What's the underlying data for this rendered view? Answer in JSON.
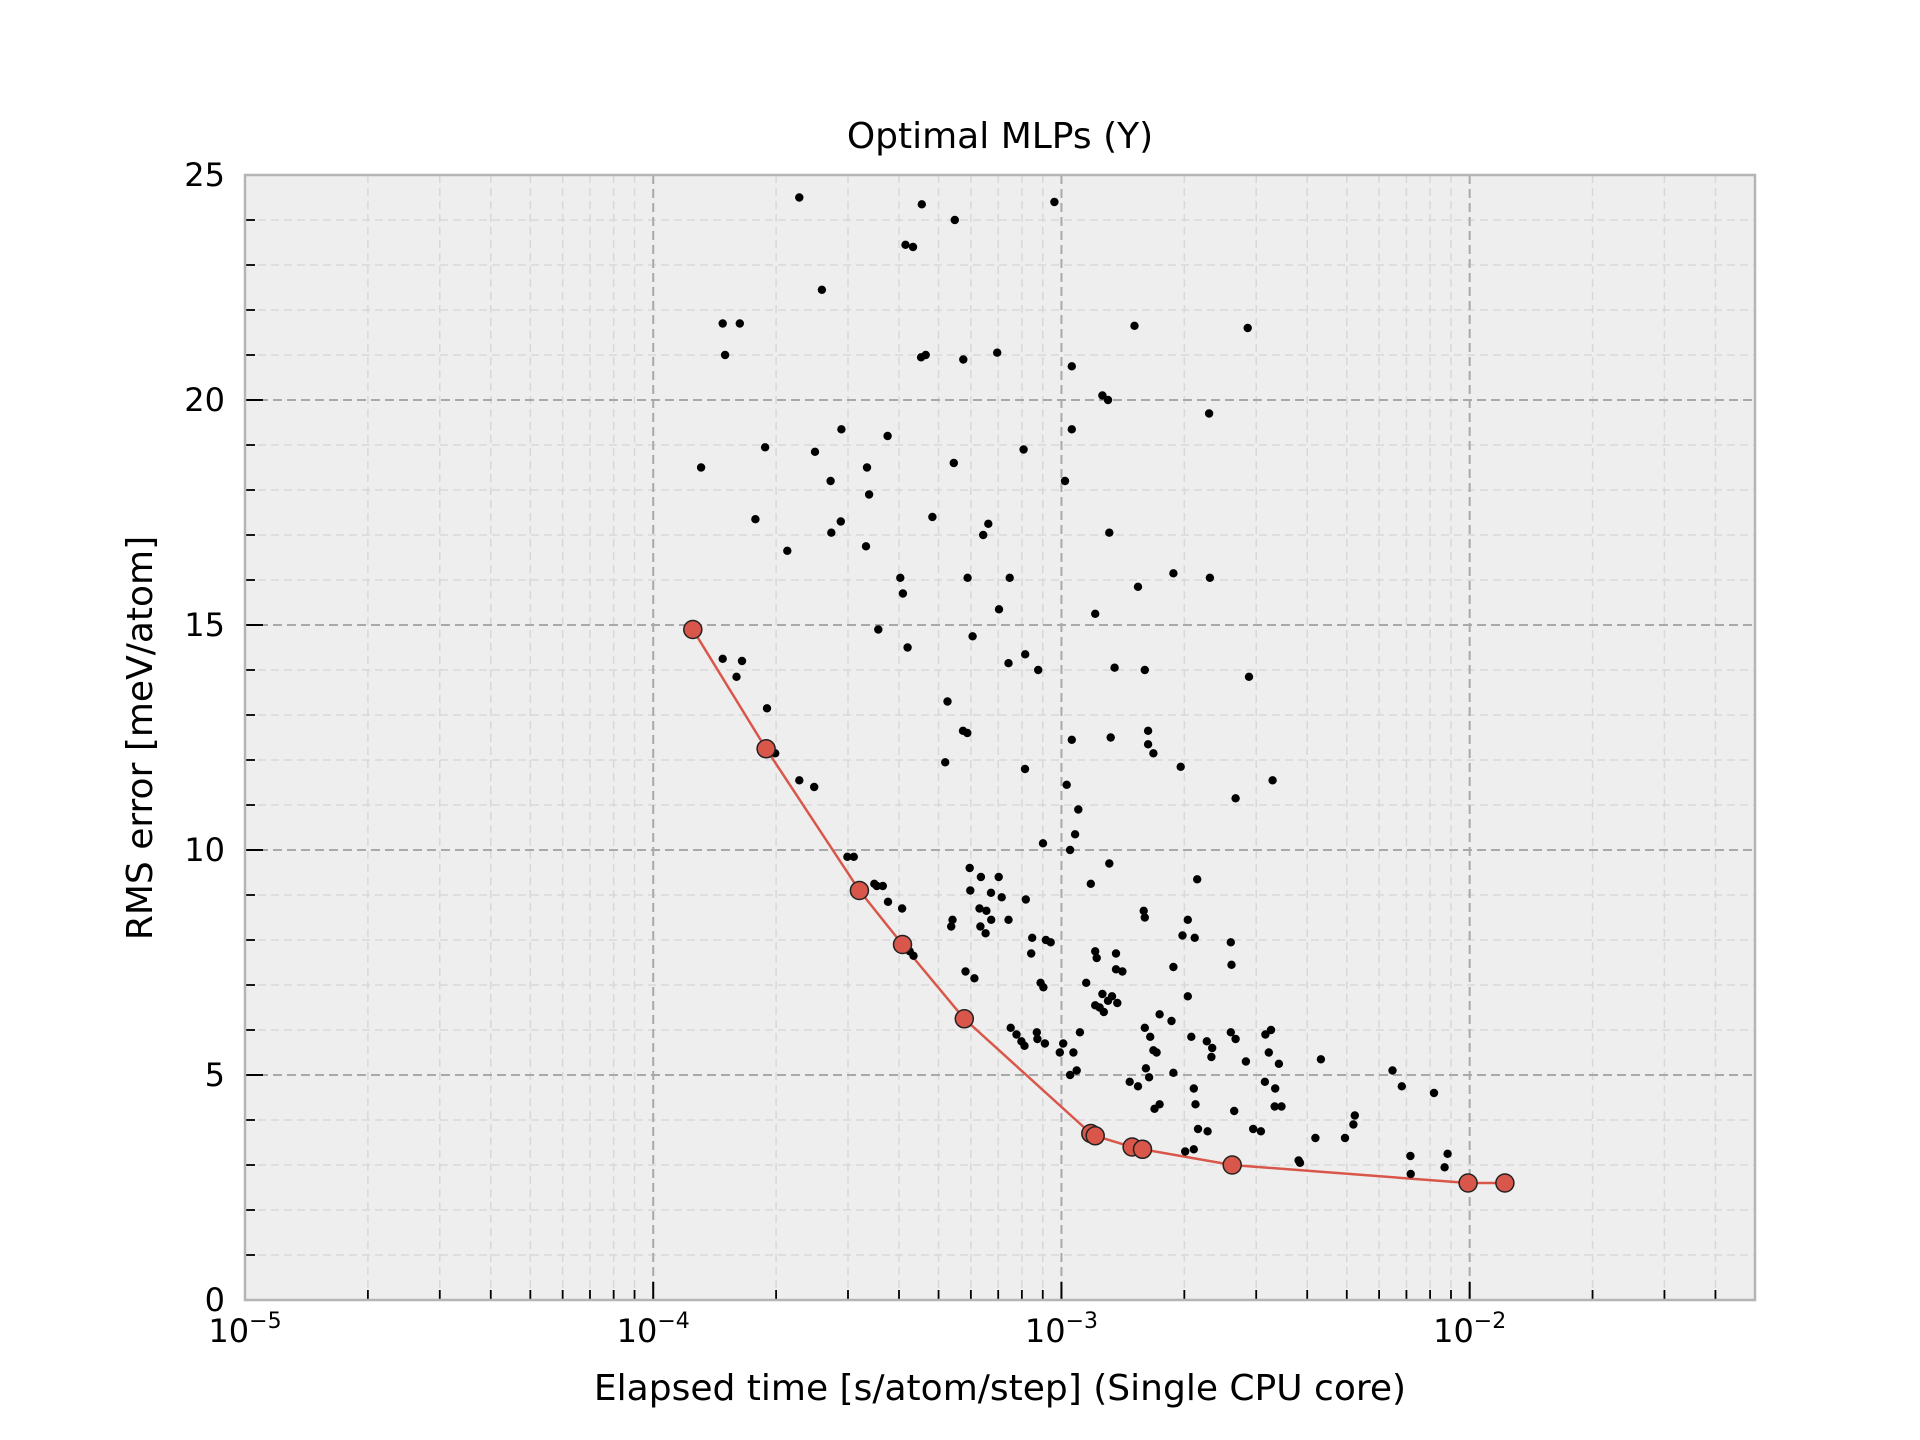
{
  "chart_data": {
    "type": "scatter",
    "title": "Optimal MLPs (Y)",
    "xlabel": "Elapsed time [s/atom/step] (Single CPU core)",
    "ylabel": "RMS error [meV/atom]",
    "xscale": "log",
    "xlim": [
      1e-05,
      0.05
    ],
    "ylim": [
      0,
      25
    ],
    "grid": true,
    "x_ticks": [
      {
        "base": "10",
        "exp": "−5",
        "value": 1e-05
      },
      {
        "base": "10",
        "exp": "−4",
        "value": 0.0001
      },
      {
        "base": "10",
        "exp": "−3",
        "value": 0.001
      },
      {
        "base": "10",
        "exp": "−2",
        "value": 0.01
      }
    ],
    "y_ticks": [
      "0",
      "5",
      "10",
      "15",
      "20",
      "25"
    ],
    "colors": {
      "pareto": "#d9574a",
      "points": "#000000",
      "plot_bg": "#eeeeee",
      "grid": "#a9a9a9"
    },
    "series": [
      {
        "kind": "points",
        "points": [
          [
            0.000228,
            24.5
          ],
          [
            0.000455,
            24.35
          ],
          [
            0.000961,
            24.4
          ],
          [
            0.000548,
            24.0
          ],
          [
            0.000415,
            23.45
          ],
          [
            0.000433,
            23.4
          ],
          [
            0.000259,
            22.45
          ],
          [
            0.000148,
            21.7
          ],
          [
            0.000163,
            21.7
          ],
          [
            0.00015,
            21.0
          ],
          [
            0.000453,
            20.95
          ],
          [
            0.000465,
            21.0
          ],
          [
            0.000575,
            20.9
          ],
          [
            0.000696,
            21.05
          ],
          [
            0.00151,
            21.65
          ],
          [
            0.00286,
            21.6
          ],
          [
            0.00106,
            20.75
          ],
          [
            0.00126,
            20.1
          ],
          [
            0.0013,
            20.0
          ],
          [
            0.0023,
            19.7
          ],
          [
            0.000131,
            18.5
          ],
          [
            0.000188,
            18.95
          ],
          [
            0.000249,
            18.85
          ],
          [
            0.000289,
            19.35
          ],
          [
            0.000375,
            19.2
          ],
          [
            0.000545,
            18.6
          ],
          [
            0.000808,
            18.9
          ],
          [
            0.00106,
            19.35
          ],
          [
            0.00102,
            18.2
          ],
          [
            0.000272,
            18.2
          ],
          [
            0.000334,
            18.5
          ],
          [
            0.000338,
            17.9
          ],
          [
            0.000178,
            17.35
          ],
          [
            0.000273,
            17.05
          ],
          [
            0.000288,
            17.3
          ],
          [
            0.000483,
            17.4
          ],
          [
            0.000643,
            17.0
          ],
          [
            0.000662,
            17.25
          ],
          [
            0.00131,
            17.05
          ],
          [
            0.000213,
            16.65
          ],
          [
            0.000332,
            16.75
          ],
          [
            0.000403,
            16.05
          ],
          [
            0.000409,
            15.7
          ],
          [
            0.000589,
            16.05
          ],
          [
            0.000747,
            16.05
          ],
          [
            0.00154,
            15.85
          ],
          [
            0.00188,
            16.15
          ],
          [
            0.00231,
            16.05
          ],
          [
            0.000356,
            14.9
          ],
          [
            0.00042,
            14.5
          ],
          [
            0.000606,
            14.75
          ],
          [
            0.000703,
            15.35
          ],
          [
            0.00121,
            15.25
          ],
          [
            0.000148,
            14.25
          ],
          [
            0.000165,
            14.2
          ],
          [
            0.00016,
            13.85
          ],
          [
            0.000742,
            14.15
          ],
          [
            0.000815,
            14.35
          ],
          [
            0.000877,
            14.0
          ],
          [
            0.00135,
            14.05
          ],
          [
            0.0016,
            14.0
          ],
          [
            0.00288,
            13.85
          ],
          [
            0.00019,
            13.15
          ],
          [
            0.000526,
            13.3
          ],
          [
            0.000574,
            12.65
          ],
          [
            0.000588,
            12.6
          ],
          [
            0.00106,
            12.45
          ],
          [
            0.00132,
            12.5
          ],
          [
            0.00163,
            12.65
          ],
          [
            0.00163,
            12.35
          ],
          [
            0.00168,
            12.15
          ],
          [
            0.000199,
            12.15
          ],
          [
            0.000519,
            11.95
          ],
          [
            0.000228,
            11.55
          ],
          [
            0.000248,
            11.4
          ],
          [
            0.000814,
            11.8
          ],
          [
            0.00196,
            11.85
          ],
          [
            0.00267,
            11.15
          ],
          [
            0.00329,
            11.55
          ],
          [
            0.00103,
            11.45
          ],
          [
            0.0011,
            10.9
          ],
          [
            0.00108,
            10.35
          ],
          [
            0.000901,
            10.15
          ],
          [
            0.00105,
            10.0
          ],
          [
            0.000299,
            9.85
          ],
          [
            0.00031,
            9.85
          ],
          [
            0.000348,
            9.25
          ],
          [
            0.000353,
            9.2
          ],
          [
            0.000365,
            9.2
          ],
          [
            0.000376,
            8.85
          ],
          [
            0.000407,
            8.7
          ],
          [
            0.000541,
            8.45
          ],
          [
            0.000537,
            8.3
          ],
          [
            0.000596,
            9.6
          ],
          [
            0.000635,
            9.4
          ],
          [
            0.000672,
            9.05
          ],
          [
            0.000702,
            9.4
          ],
          [
            0.000598,
            9.1
          ],
          [
            0.000714,
            8.95
          ],
          [
            0.00063,
            8.7
          ],
          [
            0.000655,
            8.65
          ],
          [
            0.000673,
            8.45
          ],
          [
            0.000633,
            8.3
          ],
          [
            0.000652,
            8.15
          ],
          [
            0.000742,
            8.45
          ],
          [
            0.000818,
            8.9
          ],
          [
            0.000848,
            8.05
          ],
          [
            0.000916,
            8.0
          ],
          [
            0.00118,
            9.25
          ],
          [
            0.00131,
            9.7
          ],
          [
            0.00159,
            8.65
          ],
          [
            0.0016,
            8.5
          ],
          [
            0.00204,
            8.45
          ],
          [
            0.00215,
            9.35
          ],
          [
            0.0026,
            7.95
          ],
          [
            0.00261,
            7.45
          ],
          [
            0.000425,
            7.75
          ],
          [
            0.000434,
            7.65
          ],
          [
            0.000582,
            7.3
          ],
          [
            0.000612,
            7.15
          ],
          [
            0.000843,
            7.7
          ],
          [
            0.000889,
            7.05
          ],
          [
            0.000903,
            6.95
          ],
          [
            0.000941,
            7.95
          ],
          [
            0.00121,
            7.75
          ],
          [
            0.00122,
            7.6
          ],
          [
            0.00136,
            7.7
          ],
          [
            0.00136,
            7.35
          ],
          [
            0.00141,
            7.3
          ],
          [
            0.00115,
            7.05
          ],
          [
            0.00198,
            8.1
          ],
          [
            0.00212,
            8.05
          ],
          [
            0.00188,
            7.4
          ],
          [
            0.000751,
            6.05
          ],
          [
            0.000776,
            5.9
          ],
          [
            0.000798,
            5.75
          ],
          [
            0.000812,
            5.65
          ],
          [
            0.00087,
            5.95
          ],
          [
            0.000873,
            5.8
          ],
          [
            0.000911,
            5.7
          ],
          [
            0.000991,
            5.5
          ],
          [
            0.00101,
            5.7
          ],
          [
            0.00107,
            5.5
          ],
          [
            0.00111,
            5.95
          ],
          [
            0.00109,
            5.1
          ],
          [
            0.00105,
            5.0
          ],
          [
            0.00121,
            6.55
          ],
          [
            0.00126,
            6.8
          ],
          [
            0.00124,
            6.5
          ],
          [
            0.0013,
            6.65
          ],
          [
            0.00133,
            6.75
          ],
          [
            0.00137,
            6.6
          ],
          [
            0.00127,
            6.4
          ],
          [
            0.00174,
            6.35
          ],
          [
            0.0016,
            6.05
          ],
          [
            0.00165,
            5.85
          ],
          [
            0.00168,
            5.55
          ],
          [
            0.00171,
            5.5
          ],
          [
            0.00186,
            6.2
          ],
          [
            0.00204,
            6.75
          ],
          [
            0.00208,
            5.85
          ],
          [
            0.00227,
            5.75
          ],
          [
            0.00234,
            5.6
          ],
          [
            0.00233,
            5.4
          ],
          [
            0.0026,
            5.95
          ],
          [
            0.00267,
            5.8
          ],
          [
            0.00283,
            5.3
          ],
          [
            0.00316,
            5.9
          ],
          [
            0.00326,
            6.0
          ],
          [
            0.00322,
            5.5
          ],
          [
            0.00341,
            5.25
          ],
          [
            0.00432,
            5.35
          ],
          [
            0.00161,
            5.15
          ],
          [
            0.00164,
            4.95
          ],
          [
            0.00147,
            4.85
          ],
          [
            0.00154,
            4.75
          ],
          [
            0.00188,
            5.05
          ],
          [
            0.00211,
            4.7
          ],
          [
            0.00213,
            4.35
          ],
          [
            0.00174,
            4.35
          ],
          [
            0.00169,
            4.25
          ],
          [
            0.00265,
            4.2
          ],
          [
            0.00315,
            4.85
          ],
          [
            0.00334,
            4.7
          ],
          [
            0.00333,
            4.3
          ],
          [
            0.00346,
            4.3
          ],
          [
            0.00523,
            4.1
          ],
          [
            0.00519,
            3.9
          ],
          [
            0.00647,
            5.1
          ],
          [
            0.00682,
            4.75
          ],
          [
            0.00818,
            4.6
          ],
          [
            0.00216,
            3.8
          ],
          [
            0.00228,
            3.75
          ],
          [
            0.00295,
            3.8
          ],
          [
            0.00308,
            3.75
          ],
          [
            0.00419,
            3.6
          ],
          [
            0.00495,
            3.6
          ],
          [
            0.00201,
            3.3
          ],
          [
            0.00211,
            3.35
          ],
          [
            0.00384,
            3.05
          ],
          [
            0.00381,
            3.1
          ],
          [
            0.00716,
            3.2
          ],
          [
            0.00883,
            3.25
          ],
          [
            0.00868,
            2.95
          ],
          [
            0.00717,
            2.8
          ]
        ]
      },
      {
        "kind": "pareto",
        "points": [
          [
            0.000125,
            14.9
          ],
          [
            0.000189,
            12.25
          ],
          [
            0.00032,
            9.1
          ],
          [
            0.000408,
            7.9
          ],
          [
            0.000578,
            6.25
          ],
          [
            0.00118,
            3.7
          ],
          [
            0.00121,
            3.65
          ],
          [
            0.00149,
            3.4
          ],
          [
            0.00158,
            3.35
          ],
          [
            0.00262,
            3.0
          ],
          [
            0.00991,
            2.6
          ],
          [
            0.0122,
            2.6
          ]
        ]
      }
    ]
  }
}
